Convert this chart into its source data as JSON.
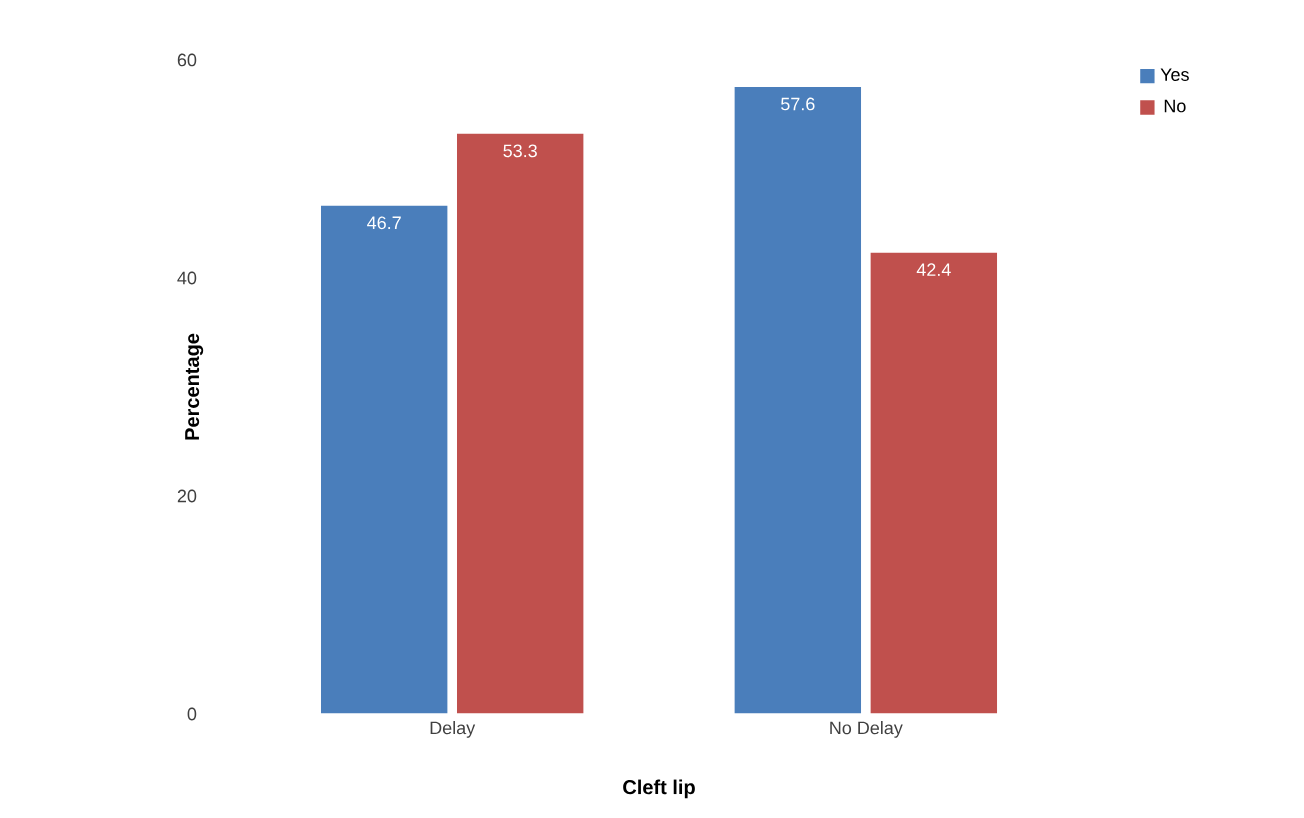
{
  "chart_data": {
    "type": "bar",
    "xlabel": "Cleft lip",
    "ylabel": "Percentage",
    "categories": [
      "Delay",
      "No Delay"
    ],
    "series": [
      {
        "name": "Yes",
        "color": "#4a7ebb",
        "values": [
          46.7,
          57.6
        ]
      },
      {
        "name": "No",
        "color": "#c0504d",
        "values": [
          53.3,
          42.4
        ]
      }
    ],
    "ylim": [
      0,
      60
    ],
    "yticks": [
      0,
      20,
      40,
      60
    ],
    "data_labels": true,
    "legend": "top right"
  }
}
